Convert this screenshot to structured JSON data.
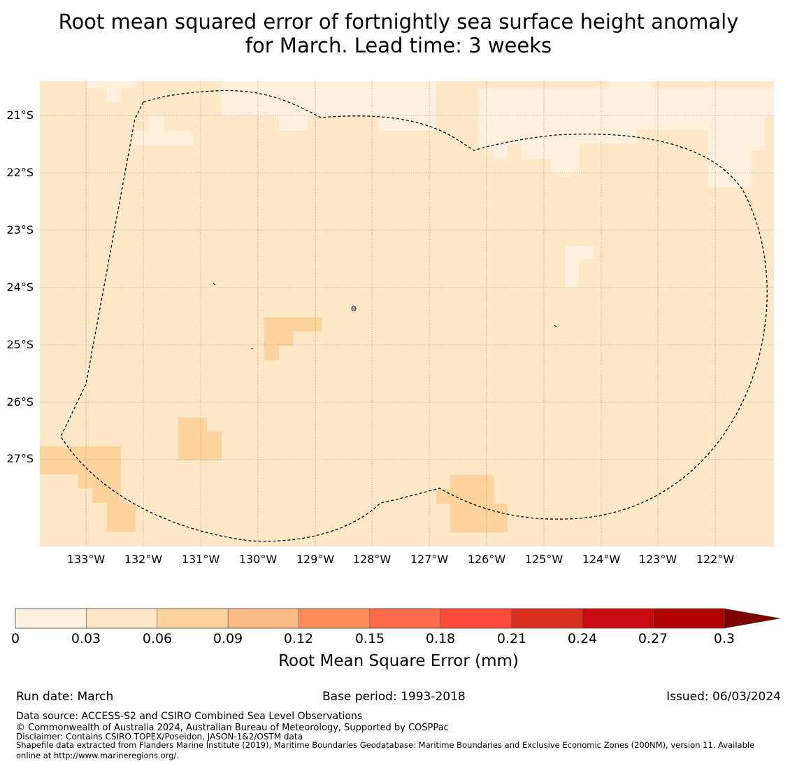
{
  "title": {
    "line1": "Root mean squared error of fortnightly sea surface height anomaly",
    "line2": "for March. Lead time: 3 weeks"
  },
  "map": {
    "lat_labels": [
      "21°S",
      "22°S",
      "23°S",
      "24°S",
      "25°S",
      "26°S",
      "27°S"
    ],
    "lon_labels": [
      "133°W",
      "132°W",
      "131°W",
      "130°W",
      "129°W",
      "128°W",
      "127°W",
      "126°W",
      "125°W",
      "124°W",
      "123°W",
      "122°W"
    ],
    "extent": {
      "lon_min": -133.8,
      "lon_max": -121.0,
      "lat_min": -28.0,
      "lat_max": -20.4
    },
    "background_class_color": "#fee8c8",
    "cell_colors": {
      "0-0.03": "#fff1de",
      "0.06-0.09": "#fdd49e"
    },
    "boundary_style": "dashed black line (EEZ boundary)"
  },
  "colorbar": {
    "ticks": [
      "0",
      "0.03",
      "0.06",
      "0.09",
      "0.12",
      "0.15",
      "0.18",
      "0.21",
      "0.24",
      "0.27",
      "0.3"
    ],
    "colors": [
      "#fff1de",
      "#fee8c8",
      "#fdd49e",
      "#fdbb84",
      "#fc8d59",
      "#ff6a4b",
      "#ff4a3a",
      "#d7301f",
      "#c90b10",
      "#b00000"
    ],
    "extend_color": "#7f0000",
    "label": "Root Mean Square Error (mm)"
  },
  "footer": {
    "run_date": "Run date: March",
    "base_period": "Base period: 1993-2018",
    "issued": "Issued: 06/03/2024",
    "data_source": "Data source: ACCESS-S2 and CSIRO Combined Sea Level Observations",
    "copyright": "© Commonwealth of Australia 2024, Australian Bureau of Meteorology, Supported by COSPPac",
    "disclaimer": "Disclaimer: Contains CSIRO TOPEX/Poseidon, JASON-1&2/OSTM data",
    "shapefile_line1": "Shapefile data extracted from Flanders Marine Institute (2019), Maritime Boundaries Geodatabase: Maritime Boundaries and Exclusive Economic Zones (200NM), version 11. Available",
    "shapefile_line2": "online at http://www.marineregions.org/."
  }
}
